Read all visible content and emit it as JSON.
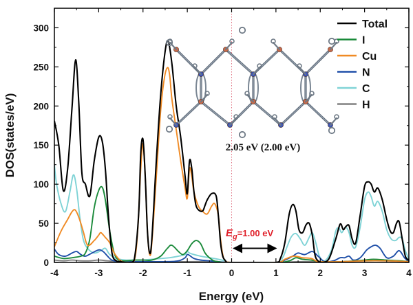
{
  "chart_data": {
    "type": "line",
    "title": "",
    "xlabel": "Energy (eV)",
    "ylabel": "DOS(states/eV)",
    "xlim": [
      -4,
      4
    ],
    "ylim": [
      0,
      325
    ],
    "xticks": [
      -4,
      -3,
      -2,
      -1,
      0,
      1,
      2,
      3,
      4
    ],
    "xtick_labels": [
      "-4",
      "-3",
      "-2",
      "-1",
      "0",
      "1",
      "2",
      "3",
      "4"
    ],
    "yticks": [
      0,
      50,
      100,
      150,
      200,
      250,
      300
    ],
    "ytick_labels": [
      "0",
      "50",
      "100",
      "150",
      "200",
      "250",
      "300"
    ],
    "grid": false,
    "legend_position": "top-right",
    "fermi_level": 0,
    "gap_annotation": {
      "symbol": "E",
      "subscript": "g",
      "text": "=1.00 eV",
      "from_x": 0.0,
      "to_x": 1.05,
      "arrow_y": 18
    },
    "inset_caption": "2.05 eV (2.00 eV)",
    "series": [
      {
        "name": "Total",
        "color": "#000000",
        "x": [
          -4.0,
          -3.9,
          -3.8,
          -3.7,
          -3.6,
          -3.52,
          -3.45,
          -3.38,
          -3.3,
          -3.2,
          -3.1,
          -3.0,
          -2.92,
          -2.85,
          -2.78,
          -2.7,
          -2.6,
          -2.5,
          -2.4,
          -2.3,
          -2.2,
          -2.1,
          -2.05,
          -2.0,
          -1.95,
          -1.9,
          -1.85,
          -1.8,
          -1.7,
          -1.6,
          -1.5,
          -1.43,
          -1.35,
          -1.25,
          -1.15,
          -1.05,
          -1.0,
          -0.95,
          -0.9,
          -0.85,
          -0.8,
          -0.72,
          -0.65,
          -0.6,
          -0.55,
          -0.45,
          -0.35,
          -0.3,
          -0.25,
          -0.2,
          -0.15,
          -0.1,
          0.0,
          0.5,
          1.0,
          1.1,
          1.2,
          1.3,
          1.38,
          1.45,
          1.52,
          1.6,
          1.68,
          1.75,
          1.82,
          1.88,
          1.95,
          2.05,
          2.2,
          2.35,
          2.45,
          2.52,
          2.58,
          2.65,
          2.72,
          2.8,
          2.9,
          3.0,
          3.08,
          3.15,
          3.22,
          3.3,
          3.4,
          3.5,
          3.58,
          3.65,
          3.72,
          3.78,
          3.85,
          3.92,
          4.0
        ],
        "y": [
          181,
          150,
          92,
          120,
          200,
          259,
          205,
          115,
          100,
          85,
          130,
          160,
          155,
          120,
          60,
          12,
          2,
          1,
          0,
          0,
          3,
          60,
          140,
          157,
          110,
          40,
          12,
          30,
          130,
          215,
          270,
          283,
          255,
          200,
          160,
          110,
          88,
          130,
          120,
          90,
          72,
          66,
          66,
          73,
          80,
          88,
          85,
          60,
          25,
          8,
          3,
          0,
          0,
          0,
          0,
          5,
          25,
          62,
          74,
          66,
          42,
          38,
          48,
          50,
          35,
          10,
          2,
          0,
          5,
          30,
          49,
          42,
          46,
          47,
          30,
          25,
          60,
          97,
          103,
          100,
          90,
          95,
          80,
          55,
          40,
          38,
          50,
          52,
          30,
          8,
          3
        ]
      },
      {
        "name": "I",
        "color": "#1a8a3a",
        "x": [
          -4.0,
          -3.8,
          -3.6,
          -3.4,
          -3.3,
          -3.2,
          -3.1,
          -3.0,
          -2.92,
          -2.85,
          -2.75,
          -2.65,
          -2.55,
          -2.4,
          -2.2,
          -2.0,
          -1.8,
          -1.6,
          -1.45,
          -1.35,
          -1.2,
          -1.1,
          -1.0,
          -0.9,
          -0.8,
          -0.7,
          -0.6,
          -0.5,
          -0.4,
          -0.3,
          -0.2,
          0.0,
          1.0,
          1.3,
          1.45,
          1.6,
          1.8,
          2.0,
          2.5,
          3.0,
          3.2,
          3.5,
          3.8,
          4.0
        ],
        "y": [
          8,
          5,
          6,
          8,
          12,
          30,
          70,
          92,
          96,
          80,
          40,
          12,
          3,
          2,
          3,
          3,
          3,
          8,
          18,
          22,
          14,
          10,
          15,
          24,
          28,
          24,
          12,
          6,
          2,
          1,
          0,
          0,
          0,
          2,
          6,
          4,
          3,
          1,
          1,
          3,
          4,
          3,
          2,
          1
        ]
      },
      {
        "name": "Cu",
        "color": "#f08a24",
        "x": [
          -4.0,
          -3.85,
          -3.7,
          -3.6,
          -3.53,
          -3.45,
          -3.35,
          -3.25,
          -3.1,
          -3.0,
          -2.95,
          -2.85,
          -2.75,
          -2.65,
          -2.5,
          -2.35,
          -2.2,
          -2.12,
          -2.05,
          -2.0,
          -1.95,
          -1.9,
          -1.85,
          -1.8,
          -1.7,
          -1.6,
          -1.52,
          -1.45,
          -1.4,
          -1.35,
          -1.25,
          -1.15,
          -1.05,
          -1.0,
          -0.95,
          -0.9,
          -0.85,
          -0.75,
          -0.65,
          -0.55,
          -0.45,
          -0.38,
          -0.3,
          -0.25,
          -0.2,
          -0.15,
          0.0,
          1.0,
          1.2,
          1.4,
          1.6,
          1.8,
          1.9,
          2.0,
          2.5,
          3.0,
          3.5,
          4.0
        ],
        "y": [
          20,
          40,
          55,
          65,
          67,
          58,
          40,
          22,
          28,
          35,
          38,
          32,
          25,
          12,
          2,
          0,
          2,
          40,
          120,
          152,
          110,
          40,
          10,
          25,
          110,
          195,
          235,
          249,
          240,
          210,
          170,
          130,
          95,
          82,
          120,
          110,
          90,
          72,
          65,
          62,
          72,
          75,
          60,
          30,
          10,
          3,
          0,
          0,
          4,
          8,
          6,
          5,
          2,
          1,
          1,
          2,
          2,
          1
        ]
      },
      {
        "name": "N",
        "color": "#1f4fa8",
        "x": [
          -4.0,
          -3.9,
          -3.75,
          -3.6,
          -3.5,
          -3.4,
          -3.3,
          -3.15,
          -3.0,
          -2.9,
          -2.8,
          -2.7,
          -2.5,
          -2.0,
          -1.5,
          -1.2,
          -1.05,
          -1.0,
          -0.95,
          -0.85,
          -0.7,
          -0.5,
          -0.3,
          0.0,
          1.0,
          1.2,
          1.38,
          1.5,
          1.65,
          1.82,
          1.95,
          2.1,
          2.3,
          2.45,
          2.55,
          2.65,
          2.75,
          2.9,
          3.05,
          3.15,
          3.25,
          3.35,
          3.5,
          3.65,
          3.78,
          3.9,
          4.0
        ],
        "y": [
          17,
          10,
          8,
          12,
          14,
          10,
          8,
          12,
          16,
          14,
          8,
          3,
          1,
          1,
          1,
          2,
          6,
          10,
          9,
          5,
          3,
          2,
          1,
          0,
          0,
          3,
          8,
          12,
          10,
          14,
          8,
          1,
          2,
          6,
          6,
          8,
          3,
          6,
          16,
          20,
          22,
          18,
          6,
          8,
          15,
          6,
          1
        ]
      },
      {
        "name": "C",
        "color": "#7fd3d6",
        "x": [
          -4.0,
          -3.95,
          -3.85,
          -3.75,
          -3.65,
          -3.57,
          -3.5,
          -3.43,
          -3.35,
          -3.25,
          -3.1,
          -2.95,
          -2.85,
          -2.75,
          -2.6,
          -2.4,
          -2.2,
          -2.0,
          -1.8,
          -1.6,
          -1.4,
          -1.2,
          -1.05,
          -1.0,
          -0.95,
          -0.85,
          -0.7,
          -0.5,
          -0.3,
          -0.15,
          0.0,
          1.0,
          1.15,
          1.25,
          1.35,
          1.45,
          1.55,
          1.65,
          1.75,
          1.82,
          1.9,
          1.98,
          2.1,
          2.25,
          2.35,
          2.42,
          2.48,
          2.53,
          2.58,
          2.65,
          2.72,
          2.8,
          2.9,
          3.0,
          3.08,
          3.15,
          3.22,
          3.3,
          3.4,
          3.5,
          3.6,
          3.7,
          3.78,
          3.85,
          3.92,
          4.0
        ],
        "y": [
          125,
          100,
          75,
          65,
          90,
          112,
          95,
          60,
          30,
          18,
          12,
          15,
          18,
          10,
          5,
          3,
          3,
          3,
          4,
          5,
          6,
          8,
          10,
          14,
          12,
          10,
          8,
          6,
          4,
          2,
          0,
          0,
          6,
          20,
          33,
          37,
          30,
          22,
          32,
          38,
          25,
          8,
          2,
          15,
          40,
          44,
          38,
          42,
          45,
          38,
          22,
          20,
          45,
          80,
          90,
          84,
          72,
          78,
          65,
          42,
          30,
          28,
          32,
          30,
          15,
          4
        ]
      },
      {
        "name": "H",
        "color": "#808080",
        "x": [
          -4.0,
          -3.8,
          -3.6,
          -3.4,
          -3.2,
          -3.0,
          -2.8,
          -2.5,
          -2.0,
          -1.5,
          -1.0,
          -0.5,
          0.0,
          1.0,
          1.5,
          2.0,
          2.5,
          3.0,
          3.5,
          4.0
        ],
        "y": [
          3,
          2,
          3,
          2,
          2,
          3,
          2,
          1,
          1,
          1,
          1,
          1,
          0,
          0,
          1,
          1,
          1,
          2,
          2,
          1
        ]
      }
    ]
  }
}
